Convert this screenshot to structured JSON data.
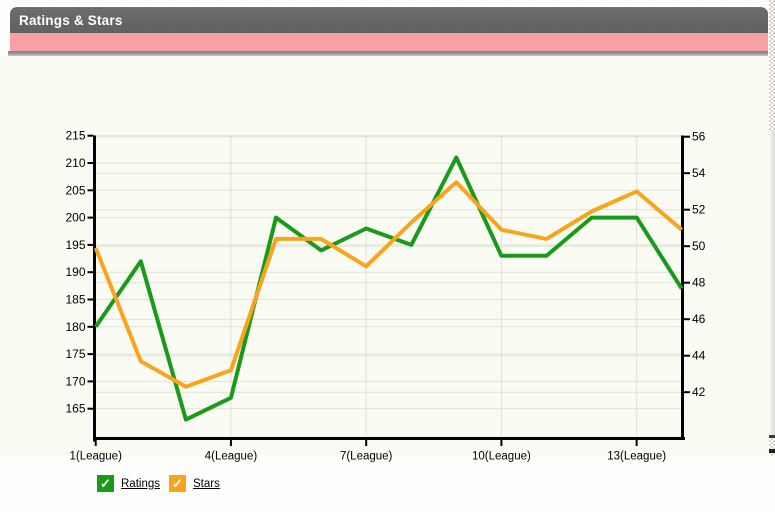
{
  "header": {
    "title": "Ratings & Stars"
  },
  "chart_data": {
    "type": "line",
    "title": "Ratings & Stars",
    "x_unit": "League",
    "x": [
      1,
      2,
      3,
      4,
      5,
      6,
      7,
      8,
      9,
      10,
      11,
      12,
      13,
      14
    ],
    "x_tick_leagues": [
      1,
      4,
      7,
      10,
      13
    ],
    "x_tick_labels": [
      "1(League)",
      "4(League)",
      "7(League)",
      "10(League)",
      "13(League)"
    ],
    "series": [
      {
        "name": "Ratings",
        "axis": "left",
        "color": "#1a9a1a",
        "values": [
          180,
          192,
          163,
          167,
          200,
          194,
          198,
          195,
          211,
          193,
          193,
          200,
          200,
          187
        ]
      },
      {
        "name": "Stars",
        "axis": "right",
        "color": "#faa41e",
        "values": [
          49.9,
          43.7,
          42.3,
          43.2,
          50.4,
          50.4,
          48.9,
          51.3,
          53.5,
          50.9,
          50.4,
          51.9,
          53.0,
          50.9
        ]
      }
    ],
    "left_axis": {
      "tick_labels": [
        215,
        210,
        205,
        200,
        195,
        190,
        185,
        180,
        175,
        170,
        165
      ],
      "ylim": [
        159.5,
        215
      ]
    },
    "right_axis": {
      "tick_labels": [
        56,
        54,
        52,
        50,
        48,
        46,
        44,
        42
      ],
      "ylim": [
        39.4,
        56
      ]
    },
    "grid": {
      "horizontal": "gridlines for both left and right axis ticks",
      "vertical": "at labeled league ticks",
      "color": "#e0e1d8"
    },
    "legend_position": "bottom-left"
  },
  "legend": {
    "items": [
      {
        "label": "Ratings",
        "color": "#1a9a1a",
        "checked": true,
        "check_glyph": "✓"
      },
      {
        "label": "Stars",
        "color": "#faa41e",
        "checked": true,
        "check_glyph": "✓"
      }
    ]
  },
  "colors": {
    "titlebar_bg": "#676767",
    "titlebar_text": "#ffffff",
    "banner_pink": "#f7a1a5",
    "content_bg": "#fafcf3",
    "axis": "#000000",
    "gridline": "#e0e1d8"
  }
}
